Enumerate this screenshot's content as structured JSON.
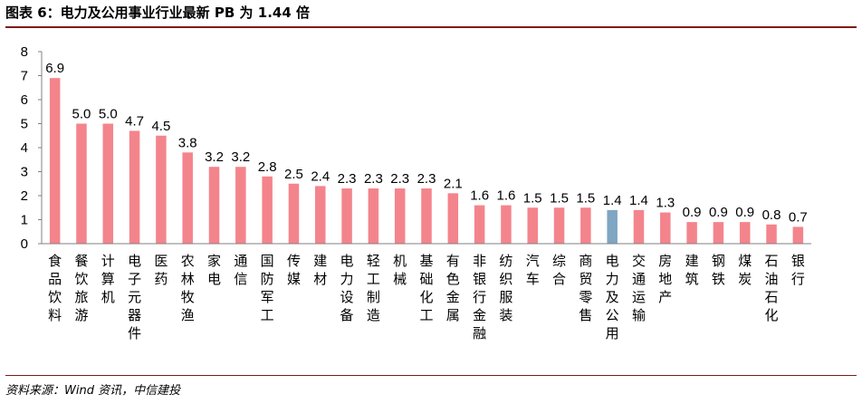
{
  "header": {
    "title": "图表 6：电力及公用事业行业最新 PB 为 1.44 倍"
  },
  "footer": {
    "source": "资料来源：Wind 资讯，中信建投"
  },
  "chart_data": {
    "type": "bar",
    "title": "图表 6：电力及公用事业行业最新 PB 为 1.44 倍",
    "xlabel": "",
    "ylabel": "",
    "ylim": [
      0,
      8
    ],
    "yticks": [
      0,
      1,
      2,
      3,
      4,
      5,
      6,
      7,
      8
    ],
    "grid": false,
    "legend": "none",
    "categories": [
      "食品饮料",
      "餐饮旅游",
      "计算机",
      "电子元器件",
      "医药",
      "农林牧渔",
      "家电",
      "通信",
      "国防军工",
      "传媒",
      "建材",
      "电力设备",
      "轻工制造",
      "机械",
      "基础化工",
      "有色金属",
      "非银行金融",
      "纺织服装",
      "汽车",
      "综合",
      "商贸零售",
      "电力及公用",
      "交通运输",
      "房地产",
      "建筑",
      "钢铁",
      "煤炭",
      "石油石化",
      "银行"
    ],
    "values": [
      6.9,
      5.0,
      5.0,
      4.7,
      4.5,
      3.8,
      3.2,
      3.2,
      2.8,
      2.5,
      2.4,
      2.3,
      2.3,
      2.3,
      2.3,
      2.1,
      1.6,
      1.6,
      1.5,
      1.5,
      1.5,
      1.4,
      1.4,
      1.3,
      0.9,
      0.9,
      0.9,
      0.8,
      0.7
    ],
    "value_labels": [
      "6.9",
      "5.0",
      "5.0",
      "4.7",
      "4.5",
      "3.8",
      "3.2",
      "3.2",
      "2.8",
      "2.5",
      "2.4",
      "2.3",
      "2.3",
      "2.3",
      "2.3",
      "2.1",
      "1.6",
      "1.6",
      "1.5",
      "1.5",
      "1.5",
      "1.4",
      "1.4",
      "1.3",
      "0.9",
      "0.9",
      "0.9",
      "0.8",
      "0.7"
    ],
    "highlight_category": "电力及公用",
    "colors": {
      "bar": "#f4848c",
      "highlight": "#7fa6c2",
      "axis": "#808080",
      "rule": "#7f1a1a"
    }
  }
}
